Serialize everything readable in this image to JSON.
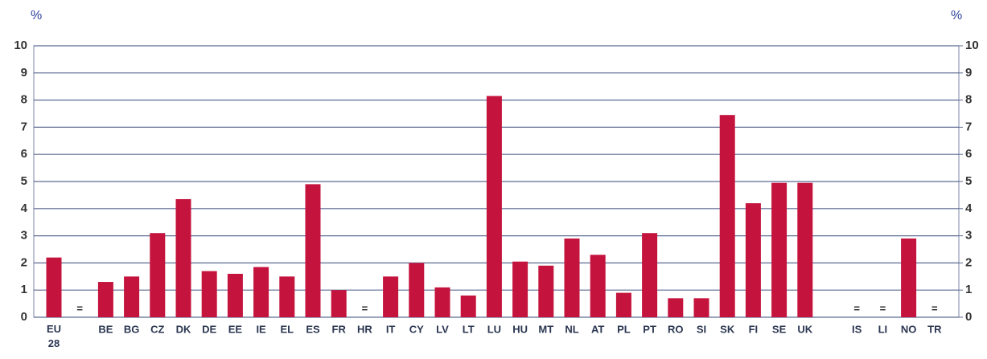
{
  "chart_data": {
    "type": "bar",
    "ylabel": "%",
    "y2label": "%",
    "categories": [
      "EU 28",
      null,
      "BE",
      "BG",
      "CZ",
      "DK",
      "DE",
      "EE",
      "IE",
      "EL",
      "ES",
      "FR",
      "HR",
      "IT",
      "CY",
      "LV",
      "LT",
      "LU",
      "HU",
      "MT",
      "NL",
      "AT",
      "PL",
      "PT",
      "RO",
      "SI",
      "SK",
      "FI",
      "SE",
      "UK",
      null,
      "IS",
      "LI",
      "NO",
      "TR"
    ],
    "values": [
      2.2,
      null,
      1.3,
      1.5,
      3.1,
      4.35,
      1.7,
      1.6,
      1.85,
      1.5,
      4.9,
      1.0,
      null,
      1.5,
      2.0,
      1.1,
      0.8,
      8.15,
      2.05,
      1.9,
      2.9,
      2.3,
      0.9,
      3.1,
      0.7,
      0.7,
      7.45,
      4.2,
      4.95,
      4.95,
      null,
      null,
      null,
      2.9,
      null
    ],
    "value_labels": [
      null,
      "=",
      null,
      null,
      null,
      null,
      null,
      null,
      null,
      null,
      null,
      null,
      "=",
      null,
      null,
      null,
      null,
      null,
      null,
      null,
      null,
      null,
      null,
      null,
      null,
      null,
      null,
      null,
      null,
      null,
      null,
      "=",
      "=",
      null,
      "="
    ],
    "color": "#c4133d",
    "ylim": [
      0,
      10
    ],
    "yticks": [
      0,
      1,
      2,
      3,
      4,
      5,
      6,
      7,
      8,
      9,
      10
    ],
    "y2lim": [
      0,
      10
    ],
    "y2ticks": [
      0,
      1,
      2,
      3,
      4,
      5,
      6,
      7,
      8,
      9,
      10
    ],
    "grid": true
  }
}
